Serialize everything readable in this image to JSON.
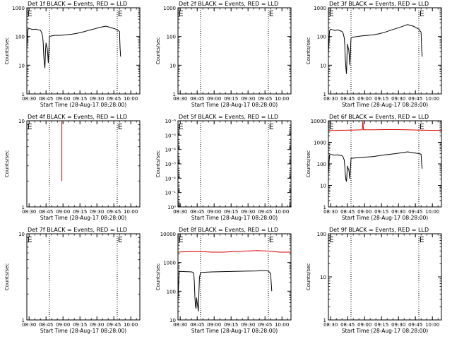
{
  "chart_data": [
    {
      "type": "line",
      "title": "Det 1f BLACK = Events, RED = LLD",
      "xlabel": "Start Time (28-Aug-17 08:28:00)",
      "ylabel": "Counts/sec",
      "yscale": "log",
      "ylim": [
        1,
        1000
      ],
      "yticks": [
        1,
        10,
        100,
        1000
      ],
      "ytick_labels": [
        "1",
        "10",
        "100",
        "1000"
      ],
      "xticks": [
        "08:30",
        "08:45",
        "09:00",
        "09:15",
        "09:30",
        "09:45",
        "10:00"
      ],
      "xlim_minutes": [
        0,
        100
      ],
      "vlines_minutes": [
        20,
        80
      ],
      "markers": [
        {
          "text": "E",
          "x_minutes": 0.5
        },
        {
          "text": "E",
          "x_minutes": 80.5
        }
      ],
      "series": [
        {
          "color": "#000000",
          "x": [
            0,
            1,
            2,
            4,
            6,
            8,
            10,
            12,
            13,
            14,
            14.5,
            15,
            15.5,
            16,
            16.5,
            17,
            17.5,
            18,
            18.5,
            19,
            20,
            22,
            25,
            30,
            35,
            40,
            45,
            50,
            55,
            60,
            65,
            70,
            75,
            78,
            80,
            81,
            82,
            82.5,
            83
          ],
          "y": [
            40,
            180,
            190,
            180,
            175,
            180,
            170,
            165,
            140,
            100,
            60,
            20,
            12,
            8,
            30,
            60,
            45,
            40,
            25,
            12,
            100,
            105,
            110,
            110,
            115,
            120,
            130,
            145,
            165,
            185,
            210,
            230,
            200,
            185,
            170,
            160,
            150,
            40,
            20
          ]
        }
      ]
    },
    {
      "type": "line",
      "title": "Det 2f BLACK = Events, RED = LLD",
      "xlabel": "Start Time (28-Aug-17 08:28:00)",
      "ylabel": "Counts/sec",
      "yscale": "log",
      "ylim": [
        1,
        1000
      ],
      "yticks": [
        1,
        10,
        100,
        1000
      ],
      "ytick_labels": [
        "1",
        "10",
        "100",
        "1000"
      ],
      "xticks": [
        "08:30",
        "08:45",
        "09:00",
        "09:15",
        "09:30",
        "09:45",
        "10:00"
      ],
      "xlim_minutes": [
        0,
        100
      ],
      "vlines_minutes": [
        20,
        80
      ],
      "markers": [
        {
          "text": "E",
          "x_minutes": 0.5
        },
        {
          "text": "E",
          "x_minutes": 80.5
        }
      ],
      "series": []
    },
    {
      "type": "line",
      "title": "Det 3f BLACK = Events, RED = LLD",
      "xlabel": "Start Time (28-Aug-17 08:28:00)",
      "ylabel": "Counts/sec",
      "yscale": "log",
      "ylim": [
        1,
        1000
      ],
      "yticks": [
        1,
        10,
        100,
        1000
      ],
      "ytick_labels": [
        "1",
        "10",
        "100",
        "1000"
      ],
      "xticks": [
        "08:30",
        "08:45",
        "09:00",
        "09:15",
        "09:30",
        "09:45",
        "10:00"
      ],
      "xlim_minutes": [
        0,
        100
      ],
      "vlines_minutes": [
        20,
        80
      ],
      "markers": [
        {
          "text": "E",
          "x_minutes": 0.5
        },
        {
          "text": "E",
          "x_minutes": 80.5
        }
      ],
      "series": [
        {
          "color": "#000000",
          "x": [
            0,
            1,
            2,
            4,
            6,
            8,
            10,
            12,
            13,
            14,
            14.5,
            15,
            15.5,
            16,
            16.5,
            17,
            17.5,
            18,
            18.5,
            19,
            20,
            22,
            25,
            30,
            35,
            40,
            45,
            50,
            55,
            60,
            65,
            70,
            75,
            78,
            80,
            81,
            82,
            82.5,
            83
          ],
          "y": [
            25,
            160,
            180,
            170,
            160,
            170,
            160,
            150,
            130,
            90,
            50,
            15,
            8,
            5,
            25,
            55,
            40,
            35,
            20,
            10,
            90,
            95,
            100,
            105,
            110,
            115,
            125,
            140,
            165,
            190,
            220,
            260,
            230,
            200,
            180,
            160,
            140,
            40,
            20
          ]
        }
      ]
    },
    {
      "type": "line",
      "title": "Det 4f BLACK = Events, RED = LLD",
      "xlabel": "Start Time (28-Aug-17 08:28:00)",
      "ylabel": "Counts/sec",
      "yscale": "log",
      "ylim": [
        1,
        10
      ],
      "yticks": [
        1,
        10
      ],
      "ytick_labels": [
        "1",
        "10"
      ],
      "xticks": [
        "08:30",
        "08:45",
        "09:00",
        "09:15",
        "09:30",
        "09:45",
        "10:00"
      ],
      "xlim_minutes": [
        0,
        100
      ],
      "vlines_minutes": [
        20,
        80
      ],
      "markers": [
        {
          "text": "E",
          "x_minutes": 0.5
        },
        {
          "text": "E",
          "x_minutes": 80.5
        }
      ],
      "series": [
        {
          "color": "#dd0000",
          "x": [
            31,
            31
          ],
          "y": [
            10,
            2
          ]
        }
      ]
    },
    {
      "type": "line",
      "title": "Det 5f BLACK = Events, RED = LLD",
      "xlabel": "Start Time (28-Aug-17 08:28:00)",
      "ylabel": "Counts/sec",
      "yscale": "log",
      "ylim": [
        1,
        1e-06
      ],
      "yticks": [
        1,
        0.1,
        0.01,
        0.001,
        0.0001,
        1e-05,
        1e-06
      ],
      "ytick_labels": [
        "10⁰",
        "10⁻¹",
        "10⁻²",
        "10⁻³",
        "10⁻⁴",
        "10⁻⁵",
        "10⁻⁶"
      ],
      "xticks": [
        "08:30",
        "08:45",
        "09:00",
        "09:15",
        "09:30",
        "09:45",
        "10:00"
      ],
      "xlim_minutes": [
        0,
        100
      ],
      "vlines_minutes": [
        20,
        80
      ],
      "markers": [
        {
          "text": "E",
          "x_minutes": 0.5
        },
        {
          "text": "E",
          "x_minutes": 80.5
        }
      ],
      "series": []
    },
    {
      "type": "line",
      "title": "Det 6f BLACK = Events, RED = LLD",
      "xlabel": "Start Time (28-Aug-17 08:28:00)",
      "ylabel": "Counts/sec",
      "yscale": "log",
      "ylim": [
        1,
        10000
      ],
      "yticks": [
        1,
        10,
        100,
        1000,
        10000
      ],
      "ytick_labels": [
        "1",
        "10",
        "100",
        "1000",
        "10000"
      ],
      "xticks": [
        "08:30",
        "08:45",
        "09:00",
        "09:15",
        "09:30",
        "09:45",
        "10:00"
      ],
      "xlim_minutes": [
        0,
        100
      ],
      "vlines_minutes": [
        20,
        80
      ],
      "markers": [
        {
          "text": "E",
          "x_minutes": 0.5
        },
        {
          "text": "E",
          "x_minutes": 80.5
        }
      ],
      "series": [
        {
          "color": "#dd0000",
          "x": [
            0,
            10,
            20,
            30,
            30.5,
            31,
            40,
            50,
            60,
            70,
            80,
            90,
            100
          ],
          "y": [
            3500,
            3600,
            3700,
            3800,
            10000,
            3800,
            3800,
            3900,
            3900,
            3800,
            3700,
            3600,
            3600
          ]
        },
        {
          "color": "#000000",
          "x": [
            0,
            1,
            2,
            4,
            6,
            8,
            10,
            12,
            13,
            14,
            14.5,
            15,
            15.5,
            16,
            16.5,
            17,
            17.5,
            18,
            18.5,
            19,
            20,
            22,
            25,
            30,
            35,
            40,
            45,
            50,
            55,
            60,
            65,
            70,
            75,
            78,
            80,
            81,
            82,
            82.5,
            83
          ],
          "y": [
            35,
            260,
            270,
            260,
            255,
            260,
            250,
            240,
            210,
            150,
            80,
            30,
            18,
            15,
            40,
            80,
            60,
            55,
            35,
            20,
            180,
            185,
            190,
            200,
            210,
            220,
            240,
            260,
            280,
            300,
            330,
            360,
            330,
            310,
            300,
            290,
            280,
            100,
            60
          ]
        }
      ]
    },
    {
      "type": "line",
      "title": "Det 7f BLACK = Events, RED = LLD",
      "xlabel": "Start Time (28-Aug-17 08:28:00)",
      "ylabel": "Counts/sec",
      "yscale": "log",
      "ylim": [
        1,
        10
      ],
      "yticks": [
        1,
        10
      ],
      "ytick_labels": [
        "1",
        "10"
      ],
      "xticks": [
        "08:30",
        "08:45",
        "09:00",
        "09:15",
        "09:30",
        "09:45",
        "10:00"
      ],
      "xlim_minutes": [
        0,
        100
      ],
      "vlines_minutes": [
        20,
        80
      ],
      "markers": [
        {
          "text": "E",
          "x_minutes": 0.5
        },
        {
          "text": "E",
          "x_minutes": 80.5
        }
      ],
      "series": []
    },
    {
      "type": "line",
      "title": "Det 8f BLACK = Events, RED = LLD",
      "xlabel": "Start Time (28-Aug-17 08:28:00)",
      "ylabel": "Counts/sec",
      "yscale": "log",
      "ylim": [
        10,
        10000
      ],
      "yticks": [
        10,
        100,
        1000,
        10000
      ],
      "ytick_labels": [
        "10",
        "100",
        "1000",
        "10000"
      ],
      "xticks": [
        "08:30",
        "08:45",
        "09:00",
        "09:15",
        "09:30",
        "09:45",
        "10:00"
      ],
      "xlim_minutes": [
        0,
        100
      ],
      "vlines_minutes": [
        20,
        80
      ],
      "markers": [
        {
          "text": "E",
          "x_minutes": 0.5
        },
        {
          "text": "E",
          "x_minutes": 80.5
        }
      ],
      "series": [
        {
          "color": "#dd0000",
          "x": [
            0,
            10,
            20,
            30,
            40,
            50,
            60,
            70,
            80,
            90,
            100
          ],
          "y": [
            2300,
            2400,
            2400,
            2300,
            2300,
            2400,
            2500,
            2600,
            2500,
            2300,
            2300
          ]
        },
        {
          "color": "#000000",
          "x": [
            0,
            1,
            3,
            6,
            9,
            12,
            13,
            14,
            14.5,
            15,
            15.5,
            16,
            16.5,
            17,
            17.5,
            18,
            18.5,
            19,
            20,
            25,
            30,
            40,
            50,
            60,
            70,
            75,
            78,
            80,
            81,
            82,
            82.5,
            83
          ],
          "y": [
            50,
            480,
            490,
            480,
            475,
            470,
            460,
            420,
            200,
            60,
            30,
            25,
            60,
            40,
            30,
            20,
            80,
            300,
            450,
            460,
            470,
            480,
            490,
            500,
            510,
            520,
            520,
            500,
            460,
            400,
            200,
            100
          ]
        }
      ]
    },
    {
      "type": "line",
      "title": "Det 9f BLACK = Events, RED = LLD",
      "xlabel": "Start Time (28-Aug-17 08:28:00)",
      "ylabel": "Counts/sec",
      "yscale": "log",
      "ylim": [
        1,
        100
      ],
      "yticks": [
        1,
        10,
        100
      ],
      "ytick_labels": [
        "1",
        "10",
        "100"
      ],
      "xticks": [
        "08:30",
        "08:45",
        "09:00",
        "09:15",
        "09:30",
        "09:45",
        "10:00"
      ],
      "xlim_minutes": [
        0,
        100
      ],
      "vlines_minutes": [
        20,
        80
      ],
      "markers": [
        {
          "text": "E",
          "x_minutes": 0.5
        },
        {
          "text": "E",
          "x_minutes": 80.5
        }
      ],
      "series": []
    }
  ]
}
